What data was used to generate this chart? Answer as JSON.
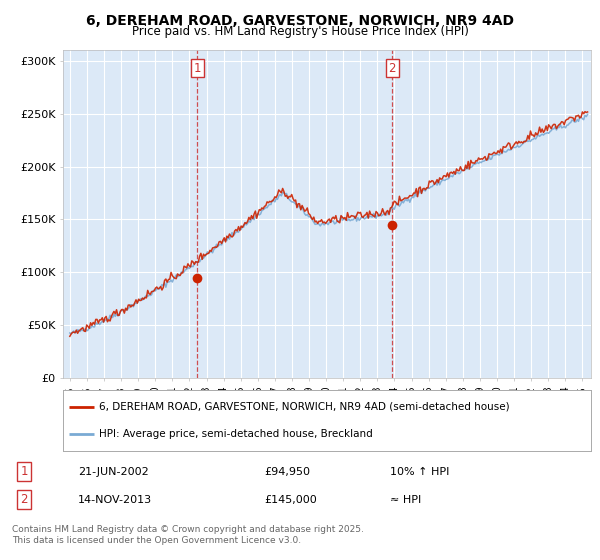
{
  "title_line1": "6, DEREHAM ROAD, GARVESTONE, NORWICH, NR9 4AD",
  "title_line2": "Price paid vs. HM Land Registry's House Price Index (HPI)",
  "plot_bg_color": "#dce9f7",
  "legend_line1": "6, DEREHAM ROAD, GARVESTONE, NORWICH, NR9 4AD (semi-detached house)",
  "legend_line2": "HPI: Average price, semi-detached house, Breckland",
  "annotation1_date": "21-JUN-2002",
  "annotation1_price": "£94,950",
  "annotation1_hpi": "10% ↑ HPI",
  "annotation2_date": "14-NOV-2013",
  "annotation2_price": "£145,000",
  "annotation2_hpi": "≈ HPI",
  "footer": "Contains HM Land Registry data © Crown copyright and database right 2025.\nThis data is licensed under the Open Government Licence v3.0.",
  "vline1_x": 2002.47,
  "vline2_x": 2013.87,
  "marker1_x": 2002.47,
  "marker1_y": 94950,
  "marker2_x": 2013.87,
  "marker2_y": 145000,
  "hpi_color": "#7aaad4",
  "price_color": "#cc2200",
  "vline_color": "#cc3333",
  "ylim": [
    0,
    310000
  ],
  "xlim": [
    1994.6,
    2025.5
  ],
  "yticks": [
    0,
    50000,
    100000,
    150000,
    200000,
    250000,
    300000
  ],
  "ylabels": [
    "£0",
    "£50K",
    "£100K",
    "£150K",
    "£200K",
    "£250K",
    "£300K"
  ]
}
